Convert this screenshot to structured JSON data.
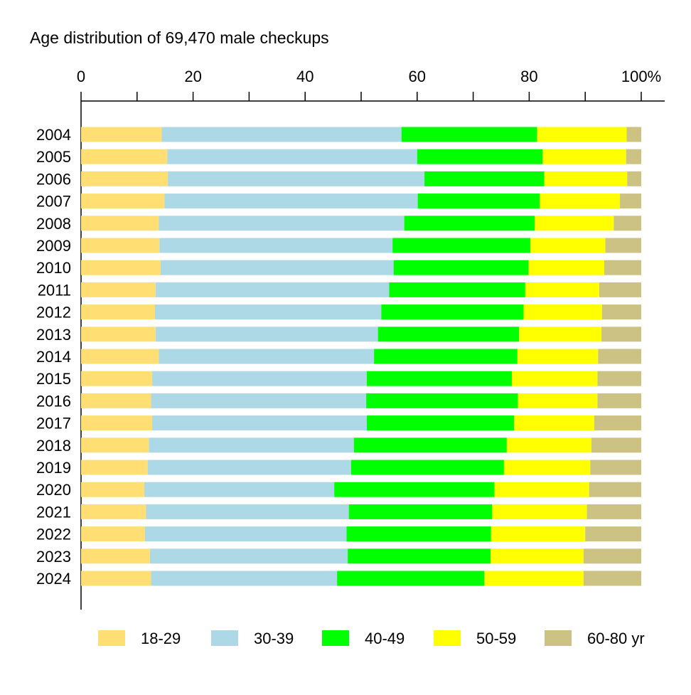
{
  "chart_data": {
    "type": "bar",
    "orientation": "horizontal",
    "stacked": true,
    "title": "Age distribution of 69,470 male checkups",
    "xlabel": "",
    "ylabel": "",
    "xlim": [
      0,
      100
    ],
    "x_ticks": [
      "0",
      "20",
      "40",
      "60",
      "80",
      "100%"
    ],
    "x_tick_values": [
      0,
      20,
      40,
      60,
      80,
      100
    ],
    "x_minor_ticks": [
      10,
      30,
      50,
      70,
      90
    ],
    "x_axis_position": "top",
    "grid": false,
    "legend_position": "bottom",
    "categories": [
      "2004",
      "2005",
      "2006",
      "2007",
      "2008",
      "2009",
      "2010",
      "2011",
      "2012",
      "2013",
      "2014",
      "2015",
      "2016",
      "2017",
      "2018",
      "2019",
      "2020",
      "2021",
      "2022",
      "2023",
      "2024"
    ],
    "series": [
      {
        "name": "18-29",
        "color": "#FFDF74",
        "values": [
          14.4,
          15.4,
          15.5,
          14.9,
          13.9,
          14.0,
          14.2,
          13.3,
          13.2,
          13.3,
          13.9,
          12.7,
          12.5,
          12.7,
          12.1,
          11.9,
          11.3,
          11.6,
          11.4,
          12.3,
          12.5
        ]
      },
      {
        "name": "30-39",
        "color": "#ADD8E6",
        "values": [
          42.8,
          44.6,
          45.8,
          45.2,
          43.8,
          41.6,
          41.6,
          41.7,
          40.4,
          39.7,
          38.4,
          38.3,
          38.4,
          38.3,
          36.6,
          36.3,
          33.9,
          36.2,
          36.0,
          35.3,
          33.2
        ]
      },
      {
        "name": "40-49",
        "color": "#00FF00",
        "values": [
          24.2,
          22.4,
          21.4,
          21.8,
          23.3,
          24.6,
          24.1,
          24.3,
          25.4,
          25.2,
          25.6,
          25.9,
          27.1,
          26.3,
          27.3,
          27.3,
          28.6,
          25.6,
          25.8,
          25.5,
          26.3
        ]
      },
      {
        "name": "50-59",
        "color": "#FFFF00",
        "values": [
          16.0,
          14.9,
          14.8,
          14.3,
          14.1,
          13.4,
          13.5,
          13.2,
          14.0,
          14.7,
          14.4,
          15.3,
          14.2,
          14.3,
          15.1,
          15.4,
          16.9,
          16.9,
          16.8,
          16.6,
          17.7
        ]
      },
      {
        "name": "60-80 yr",
        "color": "#CBC283",
        "values": [
          2.6,
          2.7,
          2.5,
          3.8,
          4.9,
          6.4,
          6.6,
          7.5,
          7.0,
          7.1,
          7.7,
          7.8,
          7.8,
          8.4,
          8.9,
          9.1,
          9.3,
          9.7,
          10.0,
          10.3,
          10.3
        ]
      }
    ]
  }
}
